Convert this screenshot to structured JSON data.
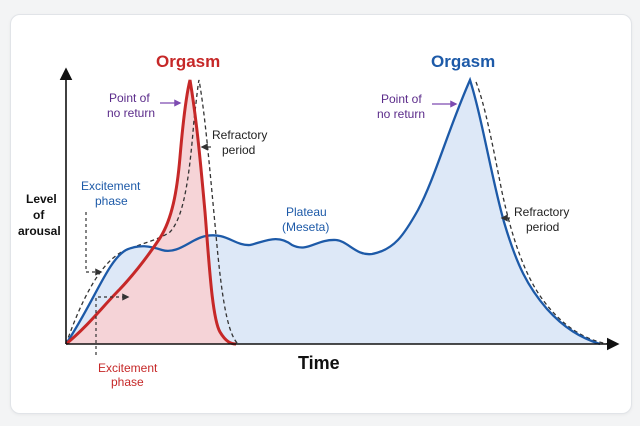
{
  "diagram": {
    "y_axis_label": [
      "Level",
      "of",
      "arousal"
    ],
    "x_axis_label": "Time",
    "curves": {
      "left": {
        "peak_label": "Orgasm",
        "color": "#c62828",
        "fill": "#f6d2d5"
      },
      "right": {
        "peak_label": "Orgasm",
        "color": "#1d5aa8",
        "fill": "#d9e6f6"
      }
    },
    "annotations": {
      "point_no_return_left": [
        "Point of",
        "no return"
      ],
      "point_no_return_right": [
        "Point of",
        "no return"
      ],
      "refractory_left": [
        "Refractory",
        "period"
      ],
      "refractory_right": [
        "Refractory",
        "period"
      ],
      "excitement_top": [
        "Excitement",
        "phase"
      ],
      "excitement_bottom": [
        "Excitement",
        "phase"
      ],
      "plateau": [
        "Plateau",
        "(Meseta)"
      ]
    },
    "colors": {
      "axis": "#111111",
      "dashed": "#333333",
      "purple": "#5b2b8a"
    }
  }
}
